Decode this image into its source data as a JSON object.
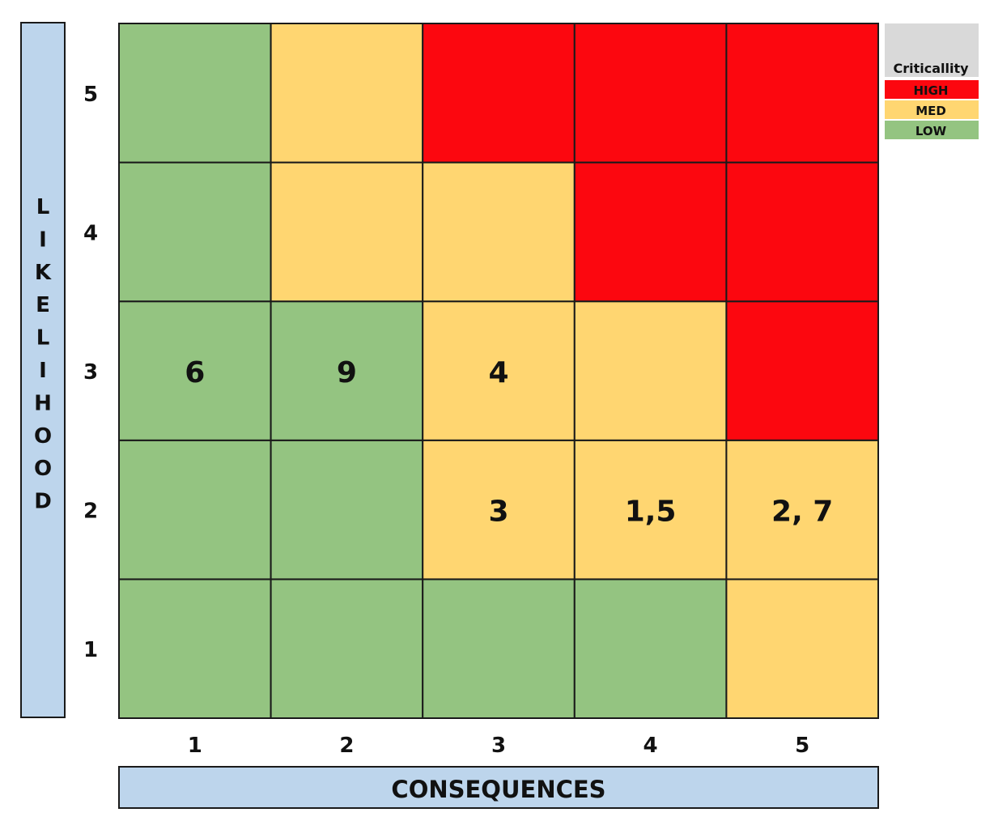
{
  "chart_data": {
    "type": "heatmap",
    "title": "",
    "xlabel": "CONSEQUENCES",
    "ylabel": "LIKELIHOOD",
    "x": [
      1,
      2,
      3,
      4,
      5
    ],
    "y": [
      1,
      2,
      3,
      4,
      5
    ],
    "levels": [
      [
        0,
        0,
        0,
        0,
        1
      ],
      [
        0,
        0,
        1,
        1,
        1
      ],
      [
        0,
        0,
        1,
        1,
        2
      ],
      [
        0,
        1,
        1,
        2,
        2
      ],
      [
        0,
        1,
        2,
        2,
        2
      ]
    ],
    "cell_labels": [
      [
        "",
        "",
        "",
        "",
        ""
      ],
      [
        "",
        "",
        "3",
        "1,5",
        "2, 7"
      ],
      [
        "6",
        "9",
        "4",
        "",
        ""
      ],
      [
        "",
        "",
        "",
        "",
        ""
      ],
      [
        "",
        "",
        "",
        "",
        ""
      ]
    ],
    "legend": {
      "title": "Criticallity",
      "placement": "top-right",
      "entries": [
        {
          "name": "HIGH",
          "color": "#fc070f",
          "text_color": "#b00000"
        },
        {
          "name": "MED",
          "color": "#ffd671",
          "text_color": "#111111"
        },
        {
          "name": "LOW",
          "color": "#94c481",
          "text_color": "#111111"
        }
      ]
    },
    "level_colors": [
      "#94c481",
      "#ffd671",
      "#fc070f"
    ]
  },
  "colors": {
    "axis_box": "#bdd5ec",
    "grid_line": "#1a1a1a",
    "legend_header": "#d9d9d9"
  }
}
